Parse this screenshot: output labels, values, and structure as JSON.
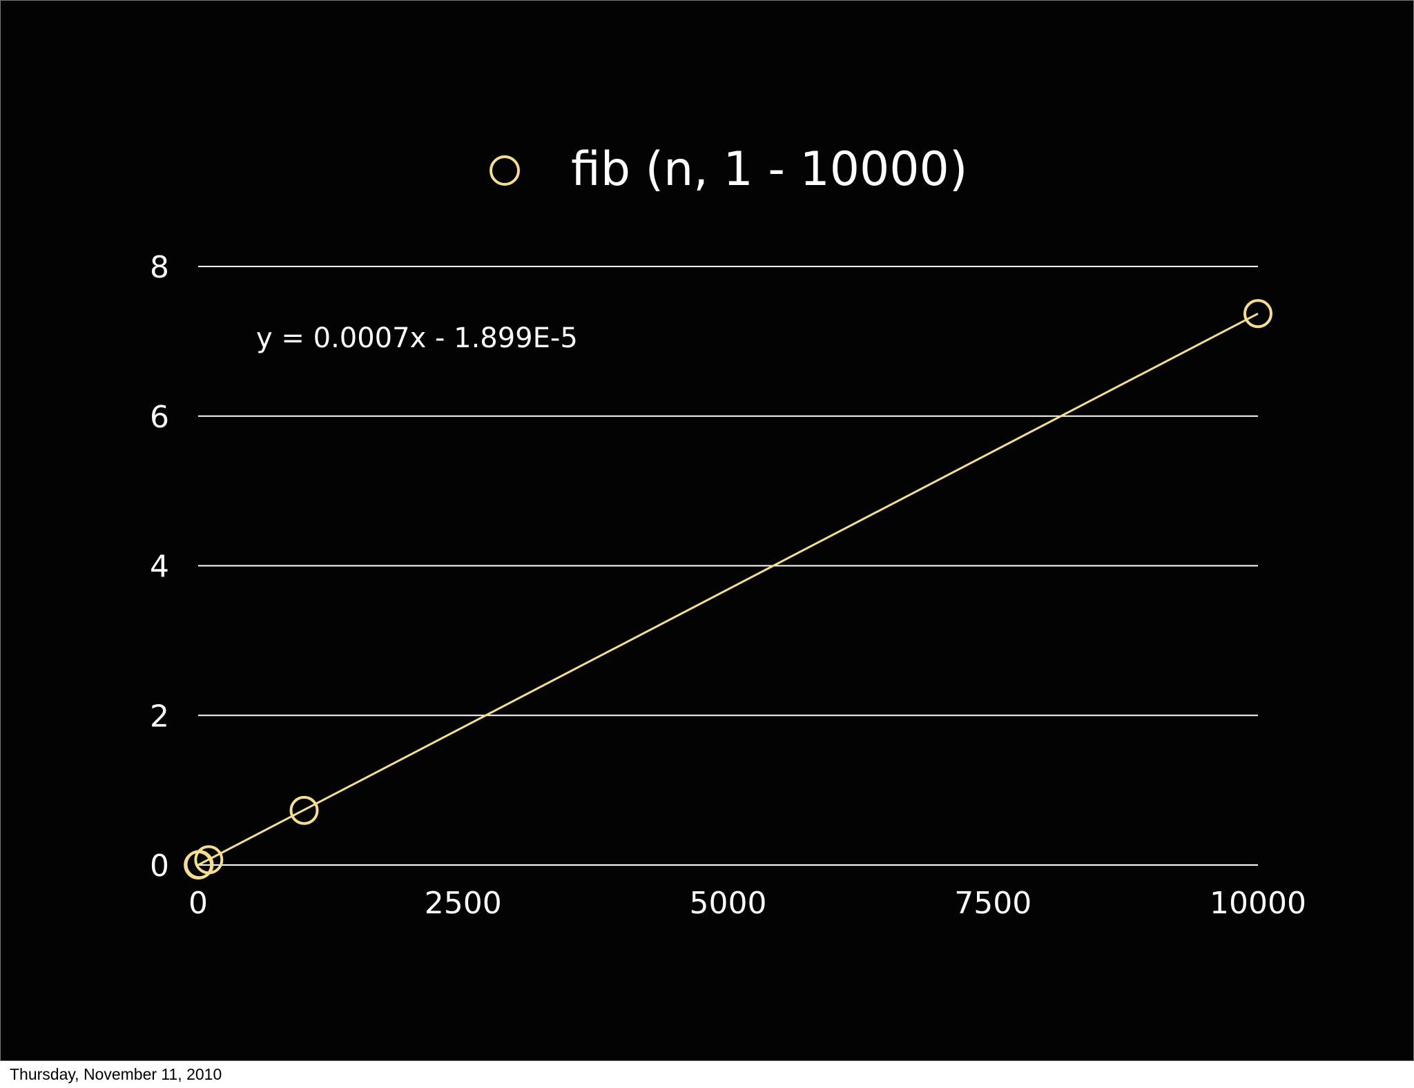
{
  "footer": {
    "date": "Thursday, November 11, 2010"
  },
  "chart_data": {
    "type": "scatter",
    "legend": {
      "label": "fib (n, 1 - 10000)",
      "position": "top-center"
    },
    "series": [
      {
        "name": "fib (n, 1 - 10000)",
        "marker": "open-circle",
        "color": "#f5de8f",
        "x": [
          1,
          10,
          100,
          1000,
          10000
        ],
        "y": [
          0.0,
          0.007,
          0.07,
          0.73,
          7.37
        ]
      }
    ],
    "trendline": {
      "type": "linear",
      "equation": "y = 0.0007x - 1.899E-5",
      "slope": 0.000737,
      "intercept": -1.899e-05,
      "x_range": [
        0,
        10000
      ],
      "color": "#f5de8f"
    },
    "xlim": [
      0,
      10000
    ],
    "ylim": [
      0,
      8
    ],
    "x_ticks": [
      "0",
      "2500",
      "5000",
      "7500",
      "10000"
    ],
    "x_tick_values": [
      0,
      2500,
      5000,
      7500,
      10000
    ],
    "y_ticks": [
      "0",
      "2",
      "4",
      "6",
      "8"
    ],
    "y_tick_values": [
      0,
      2,
      4,
      6,
      8
    ],
    "grid": "horizontal",
    "colors": {
      "background": "#030303",
      "text": "#ffffff",
      "grid": "#ffffff",
      "series": "#f5de8f"
    }
  }
}
